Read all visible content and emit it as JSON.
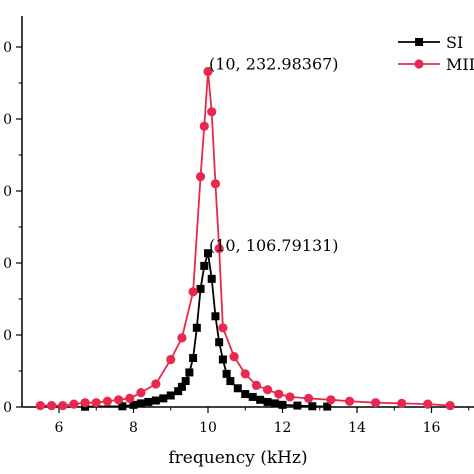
{
  "chart_data": {
    "type": "line",
    "title": "",
    "xlabel": "frequency (kHz)",
    "ylabel": "",
    "xlim": [
      5,
      16.6
    ],
    "ylim": [
      0,
      250
    ],
    "x_ticks": [
      6,
      8,
      10,
      12,
      14,
      16
    ],
    "x_tick_labels": [
      "6",
      "8",
      "10",
      "12",
      "14",
      "16"
    ],
    "y_ticks": [
      0,
      50,
      100,
      150,
      200,
      250
    ],
    "y_tick_labels": [
      "0",
      "0",
      "0",
      "0",
      "0",
      "0"
    ],
    "legend": {
      "placement": "top-right",
      "entries": [
        {
          "label": "SI",
          "color": "#000000",
          "marker": "square"
        },
        {
          "label": "MII",
          "color": "#e8294f",
          "marker": "circle"
        }
      ]
    },
    "series": [
      {
        "name": "SI",
        "color": "#000000",
        "marker": "square",
        "x": [
          6.7,
          7.7,
          8.0,
          8.2,
          8.4,
          8.6,
          8.8,
          9.0,
          9.2,
          9.3,
          9.4,
          9.5,
          9.6,
          9.7,
          9.8,
          9.9,
          10.0,
          10.1,
          10.2,
          10.3,
          10.4,
          10.5,
          10.6,
          10.8,
          11.0,
          11.2,
          11.4,
          11.6,
          11.8,
          12.0,
          12.4,
          12.8,
          13.2
        ],
        "y": [
          0.2,
          0.5,
          1.5,
          2.5,
          3.5,
          4.5,
          6,
          8,
          11,
          14,
          18,
          24,
          34,
          55,
          82,
          98,
          106.79131,
          89,
          63,
          45,
          33,
          23,
          18,
          13,
          9,
          7,
          5,
          3.5,
          2.5,
          1.5,
          1,
          0.5,
          0.3
        ]
      },
      {
        "name": "MII",
        "color": "#e8294f",
        "marker": "circle",
        "x": [
          5.5,
          5.8,
          6.1,
          6.4,
          6.7,
          7.0,
          7.3,
          7.6,
          7.9,
          8.2,
          8.6,
          9.0,
          9.3,
          9.6,
          9.8,
          9.9,
          10.0,
          10.1,
          10.2,
          10.3,
          10.4,
          10.7,
          11.0,
          11.3,
          11.6,
          11.9,
          12.2,
          12.7,
          13.3,
          13.8,
          14.5,
          15.2,
          15.9,
          16.5
        ],
        "y": [
          1,
          1,
          1,
          2,
          3,
          3,
          4,
          5,
          6,
          10,
          16,
          33,
          48,
          80,
          160,
          195,
          232.98367,
          205,
          155,
          110,
          55,
          35,
          23,
          15,
          12,
          9,
          7,
          6,
          5,
          4,
          3,
          2.5,
          2,
          1
        ]
      }
    ],
    "annotations": [
      {
        "text": "(10,  232.98367)",
        "x": 10,
        "y": 232.98367
      },
      {
        "text": "(10,  106.79131)",
        "x": 10,
        "y": 106.79131
      }
    ]
  }
}
